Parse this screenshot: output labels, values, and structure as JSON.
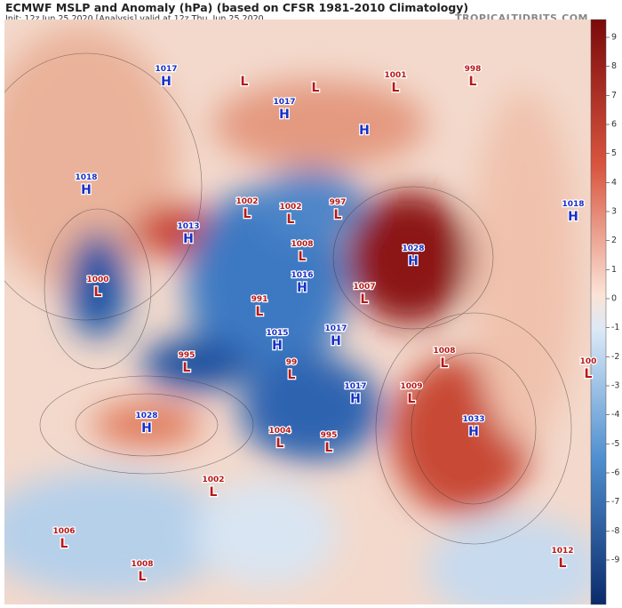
{
  "title": "ECMWF MSLP and Anomaly (hPa) (based on CFSR 1981-2010 Climatology)",
  "subtitle": "Init: 12z Jun 25 2020   [Analysis]   valid at 12z Thu, Jun 25 2020",
  "site": "TROPICALTIDBITS.COM",
  "colorbar": {
    "ticks": [
      9,
      8,
      7,
      6,
      5,
      4,
      3,
      2,
      1,
      0,
      -1,
      -2,
      -3,
      -4,
      -5,
      -6,
      -7,
      -8,
      -9
    ]
  },
  "centers": [
    {
      "letter": "H",
      "value": "1017"
    },
    {
      "letter": "L"
    },
    {
      "letter": "L"
    },
    {
      "letter": "H",
      "value": "1017"
    },
    {
      "letter": "L",
      "value": "1001"
    },
    {
      "letter": "L",
      "value": "998"
    },
    {
      "letter": "H"
    },
    {
      "letter": "H",
      "value": "1018"
    },
    {
      "letter": "L",
      "value": "1002"
    },
    {
      "letter": "L",
      "value": "1002"
    },
    {
      "letter": "L",
      "value": "997"
    },
    {
      "letter": "H",
      "value": "1013"
    },
    {
      "letter": "L",
      "value": "1008"
    },
    {
      "letter": "H",
      "value": "1028"
    },
    {
      "letter": "H",
      "value": "1018"
    },
    {
      "letter": "L",
      "value": "1000"
    },
    {
      "letter": "H",
      "value": "1016"
    },
    {
      "letter": "L",
      "value": "1007"
    },
    {
      "letter": "L",
      "value": "991"
    },
    {
      "letter": "H",
      "value": "1015"
    },
    {
      "letter": "H",
      "value": "1017"
    },
    {
      "letter": "L",
      "value": "995"
    },
    {
      "letter": "L",
      "value": "99"
    },
    {
      "letter": "L",
      "value": "1008"
    },
    {
      "letter": "L",
      "value": "100"
    },
    {
      "letter": "H",
      "value": "1017"
    },
    {
      "letter": "L",
      "value": "1009"
    },
    {
      "letter": "H",
      "value": "1028"
    },
    {
      "letter": "H",
      "value": "1033"
    },
    {
      "letter": "L",
      "value": "1004"
    },
    {
      "letter": "L",
      "value": "995"
    },
    {
      "letter": "L",
      "value": "1002"
    },
    {
      "letter": "L",
      "value": "1006"
    },
    {
      "letter": "L",
      "value": "1008"
    },
    {
      "letter": "L",
      "value": "1012"
    }
  ]
}
